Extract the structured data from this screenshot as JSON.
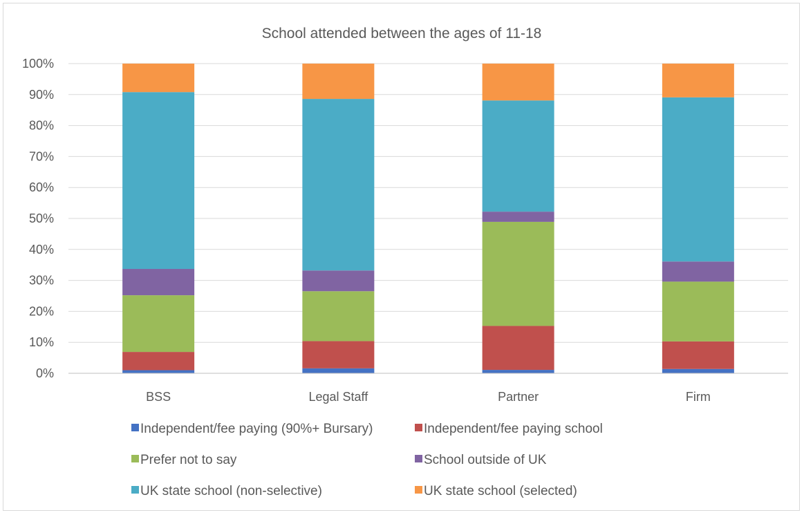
{
  "chart_data": {
    "type": "bar",
    "stacked": true,
    "title": "School attended between the ages of 11-18",
    "categories": [
      "BSS",
      "Legal Staff",
      "Partner",
      "Firm"
    ],
    "ylim": [
      0,
      100
    ],
    "yticks": [
      "0%",
      "10%",
      "20%",
      "30%",
      "40%",
      "50%",
      "60%",
      "70%",
      "80%",
      "90%",
      "100%"
    ],
    "grid": true,
    "legend_position": "bottom",
    "series": [
      {
        "name": "Independent/fee paying (90%+ Bursary)",
        "color": "#4472c4",
        "values": [
          1.0,
          1.6,
          1.1,
          1.4
        ]
      },
      {
        "name": "Independent/fee paying school",
        "color": "#c0504d",
        "values": [
          5.9,
          8.8,
          14.2,
          8.9
        ]
      },
      {
        "name": "Prefer not to say",
        "color": "#9bbb59",
        "values": [
          18.3,
          16.1,
          33.6,
          19.3
        ]
      },
      {
        "name": "School outside of UK",
        "color": "#8064a2",
        "values": [
          8.5,
          6.7,
          3.3,
          6.5
        ]
      },
      {
        "name": "UK state school (non-selective)",
        "color": "#4bacc6",
        "values": [
          57.1,
          55.4,
          35.9,
          53.0
        ]
      },
      {
        "name": "UK state school (selected)",
        "color": "#f79646",
        "values": [
          9.2,
          11.4,
          11.9,
          10.9
        ]
      }
    ]
  }
}
